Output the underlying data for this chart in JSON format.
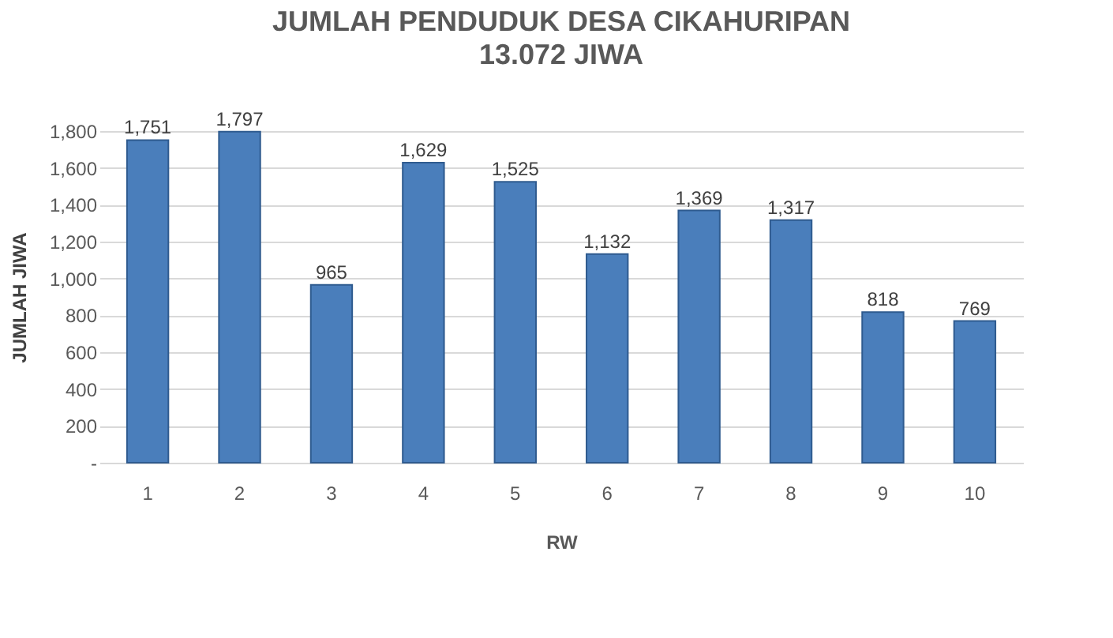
{
  "chart_data": {
    "type": "bar",
    "title": "JUMLAH PENDUDUK DESA CIKAHURIPAN",
    "subtitle": "13.072 JIWA",
    "xlabel": "RW",
    "ylabel": "JUMLAH JIWA",
    "categories": [
      "1",
      "2",
      "3",
      "4",
      "5",
      "6",
      "7",
      "8",
      "9",
      "10"
    ],
    "values": [
      1751,
      1797,
      965,
      1629,
      1525,
      1132,
      1369,
      1317,
      818,
      769
    ],
    "value_labels": [
      "1,751",
      "1,797",
      "965",
      "1,629",
      "1,525",
      "1,132",
      "1,369",
      "1,317",
      "818",
      "769"
    ],
    "color": "#4a7ebb",
    "ylim": [
      0,
      1800
    ],
    "yticks": [
      {
        "value": 0,
        "label": "-"
      },
      200,
      400,
      600,
      800,
      {
        "value": 1000,
        "label": "1,000"
      },
      {
        "value": 1200,
        "label": "1,200"
      },
      {
        "value": 1400,
        "label": "1,400"
      },
      {
        "value": 1600,
        "label": "1,600"
      },
      {
        "value": 1800,
        "label": "1,800"
      }
    ],
    "grid": "y"
  }
}
